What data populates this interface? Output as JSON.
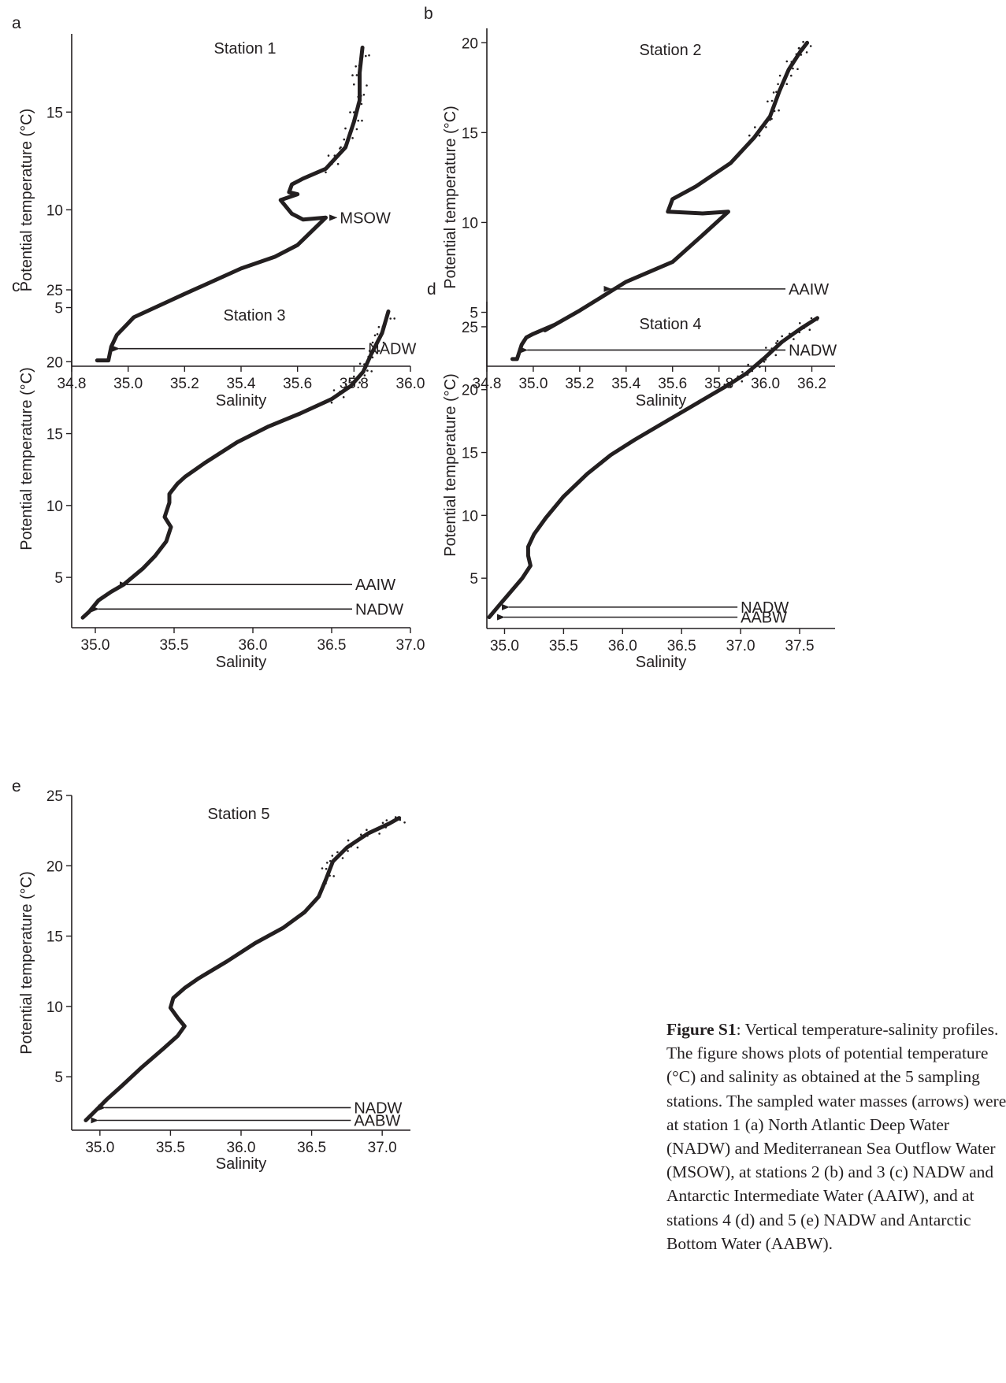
{
  "chart_data": [
    {
      "type": "line",
      "panel": "a",
      "title": "Station 1",
      "xlabel": "Salinity",
      "ylabel": "Potential temperature (°C)",
      "xlim": [
        34.8,
        36.0
      ],
      "ylim": [
        2.0,
        19.0
      ],
      "xticks": [
        "34.8",
        "35.0",
        "35.2",
        "35.4",
        "35.6",
        "35.8",
        "36.0"
      ],
      "yticks": [
        "5",
        "10",
        "15"
      ],
      "series": [
        {
          "x": [
            34.89,
            34.93,
            34.94,
            34.96,
            35.0,
            35.02,
            35.2,
            35.4,
            35.52,
            35.6,
            35.7,
            35.62,
            35.58,
            35.54,
            35.6,
            35.57,
            35.58,
            35.62,
            35.7,
            35.77,
            35.8,
            35.82,
            35.82,
            35.83
          ],
          "y": [
            2.3,
            2.3,
            3.0,
            3.6,
            4.2,
            4.5,
            5.7,
            7.0,
            7.6,
            8.2,
            9.6,
            9.5,
            9.8,
            10.5,
            10.8,
            10.9,
            11.3,
            11.6,
            12.1,
            13.2,
            14.5,
            15.6,
            17.0,
            18.3
          ]
        }
      ],
      "annotations": [
        {
          "text": "MSOW",
          "x": 35.71,
          "y": 9.6,
          "label_x": 35.75
        },
        {
          "text": "NADW",
          "x": 34.94,
          "y": 2.9,
          "label_x": 35.85
        }
      ]
    },
    {
      "type": "line",
      "panel": "b",
      "title": "Station 2",
      "xlabel": "Salinity",
      "ylabel": "Potential temperature (°C)",
      "xlim": [
        34.8,
        36.3
      ],
      "ylim": [
        2.0,
        20.8
      ],
      "xticks": [
        "34.8",
        "35.0",
        "35.2",
        "35.4",
        "35.6",
        "35.8",
        "36.0",
        "36.2"
      ],
      "yticks": [
        "5",
        "10",
        "15",
        "20"
      ],
      "series": [
        {
          "x": [
            34.91,
            34.93,
            34.95,
            34.97,
            35.0,
            35.09,
            35.05,
            35.2,
            35.4,
            35.6,
            35.73,
            35.84,
            35.73,
            35.58,
            35.6,
            35.7,
            35.85,
            35.95,
            36.02,
            36.06,
            36.1,
            36.15,
            36.18
          ],
          "y": [
            2.4,
            2.4,
            3.2,
            3.6,
            3.8,
            4.3,
            4.0,
            5.1,
            6.7,
            7.8,
            9.3,
            10.6,
            10.5,
            10.6,
            11.3,
            12.0,
            13.3,
            14.7,
            15.9,
            17.3,
            18.5,
            19.5,
            20.0
          ]
        }
      ],
      "annotations": [
        {
          "text": "AAIW",
          "x": 35.3,
          "y": 6.3,
          "label_x": 36.1
        },
        {
          "text": "NADW",
          "x": 34.94,
          "y": 2.9,
          "label_x": 36.1
        }
      ]
    },
    {
      "type": "line",
      "panel": "c",
      "title": "Station 3",
      "xlabel": "Salinity",
      "ylabel": "Potential temperature (°C)",
      "xlim": [
        34.85,
        37.0
      ],
      "ylim": [
        1.5,
        25.0
      ],
      "xticks": [
        "35.0",
        "35.5",
        "36.0",
        "36.5",
        "37.0"
      ],
      "yticks": [
        "5",
        "10",
        "15",
        "20",
        "25"
      ],
      "series": [
        {
          "x": [
            34.92,
            34.96,
            35.02,
            35.1,
            35.18,
            35.3,
            35.38,
            35.45,
            35.48,
            35.44,
            35.47,
            35.47,
            35.52,
            35.57,
            35.7,
            35.9,
            36.1,
            36.3,
            36.5,
            36.62,
            36.7,
            36.75,
            36.82,
            36.86
          ],
          "y": [
            2.2,
            2.6,
            3.4,
            4.0,
            4.5,
            5.6,
            6.5,
            7.5,
            8.5,
            9.2,
            10.2,
            10.8,
            11.5,
            12.0,
            13.0,
            14.4,
            15.5,
            16.4,
            17.4,
            18.3,
            19.3,
            20.5,
            22.0,
            23.5
          ]
        }
      ],
      "annotations": [
        {
          "text": "AAIW",
          "x": 35.15,
          "y": 4.5,
          "label_x": 36.65
        },
        {
          "text": "NADW",
          "x": 34.97,
          "y": 2.8,
          "label_x": 36.65
        }
      ]
    },
    {
      "type": "line",
      "panel": "d",
      "title": "Station 4",
      "xlabel": "Salinity",
      "ylabel": "Potential temperature (°C)",
      "xlim": [
        34.85,
        37.8
      ],
      "ylim": [
        1.0,
        27.0
      ],
      "xticks": [
        "35.0",
        "35.5",
        "36.0",
        "36.5",
        "37.0",
        "37.5"
      ],
      "yticks": [
        "5",
        "10",
        "15",
        "20",
        "25"
      ],
      "series": [
        {
          "x": [
            34.87,
            34.95,
            35.05,
            35.15,
            35.22,
            35.2,
            35.2,
            35.25,
            35.35,
            35.5,
            35.7,
            35.9,
            36.1,
            36.3,
            36.5,
            36.7,
            36.9,
            37.05,
            37.2,
            37.35,
            37.5,
            37.65
          ],
          "y": [
            1.9,
            2.8,
            3.9,
            5.0,
            6.0,
            6.8,
            7.5,
            8.5,
            9.8,
            11.5,
            13.3,
            14.8,
            16.0,
            17.1,
            18.2,
            19.3,
            20.4,
            21.3,
            22.5,
            23.8,
            24.8,
            25.7
          ]
        }
      ],
      "annotations": [
        {
          "text": "NADW",
          "x": 34.97,
          "y": 2.7,
          "label_x": 37.0
        },
        {
          "text": "AABW",
          "x": 34.93,
          "y": 1.9,
          "label_x": 37.0
        }
      ]
    },
    {
      "type": "line",
      "panel": "e",
      "title": "Station 5",
      "xlabel": "Salinity",
      "ylabel": "Potential temperature (°C)",
      "xlim": [
        34.8,
        37.2
      ],
      "ylim": [
        1.2,
        25.0
      ],
      "xticks": [
        "35.0",
        "35.5",
        "36.0",
        "36.5",
        "37.0"
      ],
      "yticks": [
        "5",
        "10",
        "15",
        "20",
        "25"
      ],
      "series": [
        {
          "x": [
            34.9,
            34.95,
            35.05,
            35.15,
            35.3,
            35.45,
            35.55,
            35.6,
            35.55,
            35.5,
            35.52,
            35.6,
            35.7,
            35.9,
            36.1,
            36.3,
            36.45,
            36.55,
            36.6,
            36.65,
            36.75,
            36.9,
            37.05,
            37.12
          ],
          "y": [
            1.9,
            2.4,
            3.4,
            4.3,
            5.7,
            7.0,
            7.9,
            8.6,
            9.2,
            9.9,
            10.6,
            11.3,
            12.0,
            13.2,
            14.5,
            15.6,
            16.7,
            17.8,
            19.0,
            20.3,
            21.3,
            22.3,
            23.0,
            23.4
          ]
        }
      ],
      "annotations": [
        {
          "text": "NADW",
          "x": 34.98,
          "y": 2.8,
          "label_x": 36.8
        },
        {
          "text": "AABW",
          "x": 34.93,
          "y": 1.9,
          "label_x": 36.8
        }
      ]
    }
  ],
  "caption": {
    "label": "Figure S1",
    "lines": [
      ": Vertical temperature-salinity profiles.",
      "The figure shows plots of potential temperature",
      "(°C) and salinity as obtained at the 5 sampling",
      "stations. The sampled water masses (arrows) were",
      "at station 1 (a) North Atlantic Deep Water",
      "(NADW) and Mediterranean Sea Outflow Water",
      "(MSOW), at stations 2 (b) and 3 (c) NADW and",
      "Antarctic Intermediate Water (AAIW), and at",
      "stations 4 (d) and 5 (e) NADW and Antarctic",
      "Bottom Water (AABW)."
    ]
  }
}
